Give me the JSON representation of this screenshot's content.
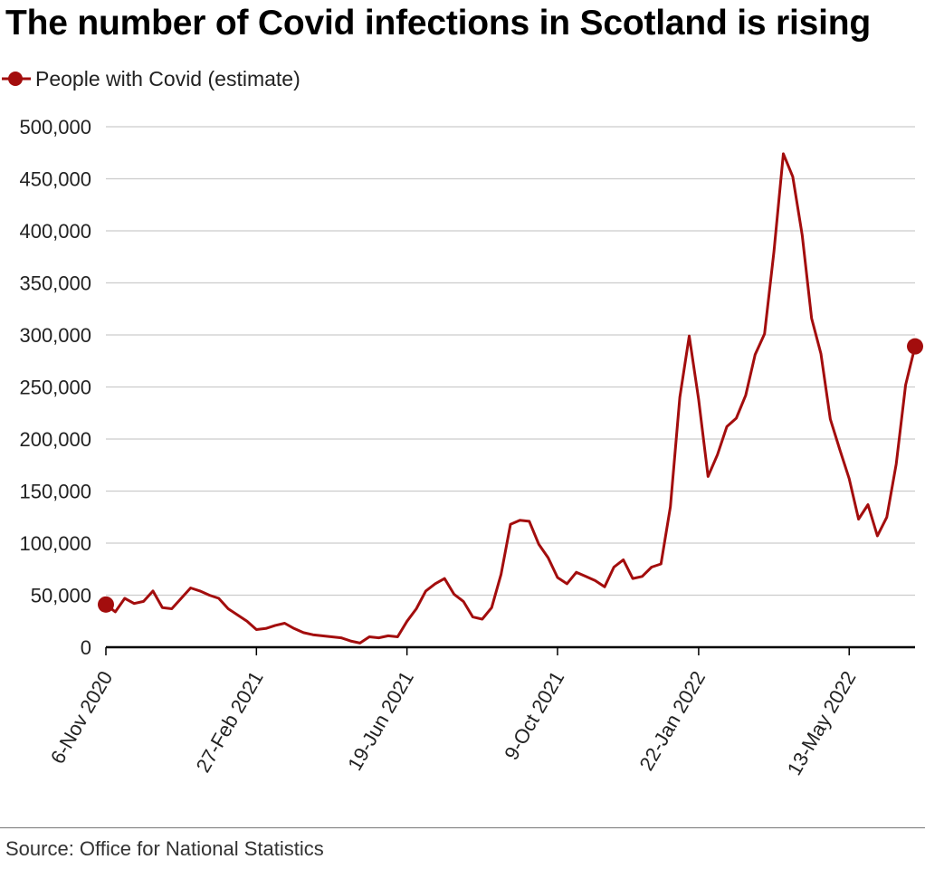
{
  "source": "Source: Office for National Statistics",
  "colors": {
    "line": "#a30d0d",
    "grid": "#cccccc",
    "axis": "#000000",
    "text": "#222222"
  },
  "chart_data": {
    "type": "line",
    "title": "The number of Covid infections in Scotland is rising",
    "xlabel": "",
    "ylabel": "",
    "ylim": [
      0,
      500000
    ],
    "yticks": [
      0,
      50000,
      100000,
      150000,
      200000,
      250000,
      300000,
      350000,
      400000,
      450000,
      500000
    ],
    "ytick_labels": [
      "0",
      "50,000",
      "100,000",
      "150,000",
      "200,000",
      "250,000",
      "300,000",
      "350,000",
      "400,000",
      "450,000",
      "500,000"
    ],
    "xtick_labels": [
      "6-Nov 2020",
      "27-Feb 2021",
      "19-Jun 2021",
      "9-Oct 2021",
      "22-Jan 2022",
      "13-May 2022"
    ],
    "xtick_indices": [
      0,
      16,
      32,
      48,
      63,
      79
    ],
    "grid": true,
    "legend_position": "top-left",
    "series": [
      {
        "name": "People with Covid (estimate)",
        "values": [
          41000,
          34000,
          47000,
          42000,
          44000,
          54000,
          38000,
          37000,
          47000,
          57000,
          54000,
          50000,
          47000,
          37000,
          31000,
          25000,
          17000,
          18000,
          21000,
          23000,
          18000,
          14000,
          12000,
          11000,
          10000,
          9000,
          6000,
          4000,
          10000,
          9000,
          11000,
          10000,
          25000,
          37000,
          54000,
          61000,
          66000,
          51000,
          44000,
          29000,
          27000,
          38000,
          70000,
          118000,
          122000,
          121000,
          99000,
          86000,
          67000,
          61000,
          72000,
          68000,
          64000,
          58000,
          77000,
          84000,
          66000,
          68000,
          77000,
          80000,
          135000,
          240000,
          299000,
          238000,
          164000,
          185000,
          212000,
          220000,
          242000,
          281000,
          301000,
          380000,
          474000,
          452000,
          396000,
          316000,
          282000,
          219000,
          190000,
          162000,
          123000,
          137000,
          107000,
          125000,
          176000,
          252000,
          289000
        ]
      }
    ]
  }
}
